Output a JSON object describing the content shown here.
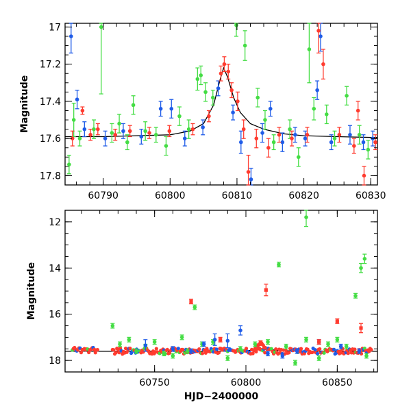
{
  "chart_data": [
    {
      "type": "scatter",
      "title": "",
      "xlabel": "",
      "ylabel": "Magnitude",
      "xlim": [
        60784.3,
        60831
      ],
      "ylim": [
        17.85,
        16.98
      ],
      "y_inverted": true,
      "xticks": [
        60790,
        60800,
        60810,
        60820,
        60830
      ],
      "yticks": [
        17,
        17.2,
        17.4,
        17.6,
        17.8
      ],
      "ytick_labels": [
        "17",
        "17.2",
        "17.4",
        "17.6",
        "17.8"
      ],
      "colors": {
        "blue": "#1f5ce8",
        "green": "#44dd44",
        "red": "#ff3b2f",
        "model": "#000000"
      },
      "model_curve": {
        "x": [
          60784.3,
          60790,
          60795,
          60800,
          60803,
          60805,
          60806.5,
          60807.5,
          60808,
          60808.6,
          60809.5,
          60810.5,
          60812,
          60814,
          60817,
          60820,
          60825,
          60831
        ],
        "y": [
          17.59,
          17.59,
          17.585,
          17.58,
          17.56,
          17.52,
          17.42,
          17.28,
          17.22,
          17.27,
          17.38,
          17.46,
          17.52,
          17.55,
          17.575,
          17.585,
          17.59,
          17.595
        ]
      },
      "series": [
        {
          "color": "green",
          "points": [
            {
              "x": 60784.9,
              "y": 17.74,
              "err": 0.05
            },
            {
              "x": 60785.6,
              "y": 17.5,
              "err": 0.09
            },
            {
              "x": 60786.5,
              "y": 17.6,
              "err": 0.04
            },
            {
              "x": 60788.6,
              "y": 17.55,
              "err": 0.05
            },
            {
              "x": 60789.7,
              "y": 17.0,
              "err": 0.36
            },
            {
              "x": 60791.3,
              "y": 17.57,
              "err": 0.05
            },
            {
              "x": 60792.4,
              "y": 17.52,
              "err": 0.05
            },
            {
              "x": 60793.6,
              "y": 17.62,
              "err": 0.04
            },
            {
              "x": 60794.5,
              "y": 17.42,
              "err": 0.05
            },
            {
              "x": 60796.3,
              "y": 17.56,
              "err": 0.05
            },
            {
              "x": 60797.9,
              "y": 17.58,
              "err": 0.04
            },
            {
              "x": 60799.4,
              "y": 17.64,
              "err": 0.05
            },
            {
              "x": 60801.4,
              "y": 17.48,
              "err": 0.05
            },
            {
              "x": 60802.8,
              "y": 17.55,
              "err": 0.05
            },
            {
              "x": 60804.1,
              "y": 17.28,
              "err": 0.06
            },
            {
              "x": 60804.6,
              "y": 17.26,
              "err": 0.05
            },
            {
              "x": 60805.3,
              "y": 17.35,
              "err": 0.05
            },
            {
              "x": 60806.4,
              "y": 17.38,
              "err": 0.04
            },
            {
              "x": 60809.9,
              "y": 16.99,
              "err": 0.06
            },
            {
              "x": 60811.2,
              "y": 17.1,
              "err": 0.08
            },
            {
              "x": 60813.1,
              "y": 17.38,
              "err": 0.05
            },
            {
              "x": 60814.2,
              "y": 17.5,
              "err": 0.05
            },
            {
              "x": 60815.5,
              "y": 17.62,
              "err": 0.04
            },
            {
              "x": 60817.9,
              "y": 17.55,
              "err": 0.05
            },
            {
              "x": 60819.2,
              "y": 17.7,
              "err": 0.05
            },
            {
              "x": 60820.8,
              "y": 17.12,
              "err": 0.18
            },
            {
              "x": 60821.5,
              "y": 17.44,
              "err": 0.06
            },
            {
              "x": 60823.4,
              "y": 17.47,
              "err": 0.05
            },
            {
              "x": 60824.6,
              "y": 17.6,
              "err": 0.04
            },
            {
              "x": 60826.4,
              "y": 17.37,
              "err": 0.05
            },
            {
              "x": 60828.3,
              "y": 17.58,
              "err": 0.05
            },
            {
              "x": 60829.6,
              "y": 17.66,
              "err": 0.05
            }
          ]
        },
        {
          "color": "blue",
          "points": [
            {
              "x": 60785.2,
              "y": 17.05,
              "err": 0.09
            },
            {
              "x": 60786.1,
              "y": 17.39,
              "err": 0.05
            },
            {
              "x": 60787.2,
              "y": 17.55,
              "err": 0.04
            },
            {
              "x": 60790.3,
              "y": 17.6,
              "err": 0.04
            },
            {
              "x": 60793.0,
              "y": 17.56,
              "err": 0.04
            },
            {
              "x": 60795.7,
              "y": 17.59,
              "err": 0.04
            },
            {
              "x": 60798.6,
              "y": 17.44,
              "err": 0.04
            },
            {
              "x": 60800.2,
              "y": 17.44,
              "err": 0.05
            },
            {
              "x": 60802.2,
              "y": 17.6,
              "err": 0.04
            },
            {
              "x": 60804.9,
              "y": 17.54,
              "err": 0.04
            },
            {
              "x": 60807.2,
              "y": 17.33,
              "err": 0.04
            },
            {
              "x": 60809.4,
              "y": 17.46,
              "err": 0.04
            },
            {
              "x": 60810.6,
              "y": 17.62,
              "err": 0.06
            },
            {
              "x": 60812.1,
              "y": 17.82,
              "err": 0.06
            },
            {
              "x": 60813.8,
              "y": 17.57,
              "err": 0.05
            },
            {
              "x": 60815.0,
              "y": 17.44,
              "err": 0.04
            },
            {
              "x": 60816.8,
              "y": 17.62,
              "err": 0.05
            },
            {
              "x": 60818.7,
              "y": 17.58,
              "err": 0.04
            },
            {
              "x": 60820.2,
              "y": 17.6,
              "err": 0.04
            },
            {
              "x": 60822.0,
              "y": 17.34,
              "err": 0.05
            },
            {
              "x": 60822.5,
              "y": 17.05,
              "err": 0.08
            },
            {
              "x": 60824.1,
              "y": 17.62,
              "err": 0.04
            },
            {
              "x": 60826.9,
              "y": 17.58,
              "err": 0.05
            },
            {
              "x": 60828.9,
              "y": 17.62,
              "err": 0.04
            },
            {
              "x": 60830.3,
              "y": 17.6,
              "err": 0.04
            }
          ]
        },
        {
          "color": "red",
          "points": [
            {
              "x": 60785.4,
              "y": 17.6,
              "err": 0.04
            },
            {
              "x": 60786.9,
              "y": 17.45,
              "err": 0.02
            },
            {
              "x": 60788.1,
              "y": 17.58,
              "err": 0.03
            },
            {
              "x": 60789.2,
              "y": 17.55,
              "err": 0.03
            },
            {
              "x": 60791.8,
              "y": 17.58,
              "err": 0.03
            },
            {
              "x": 60794.0,
              "y": 17.56,
              "err": 0.03
            },
            {
              "x": 60796.9,
              "y": 17.57,
              "err": 0.03
            },
            {
              "x": 60799.9,
              "y": 17.56,
              "err": 0.03
            },
            {
              "x": 60803.4,
              "y": 17.55,
              "err": 0.03
            },
            {
              "x": 60805.8,
              "y": 17.48,
              "err": 0.03
            },
            {
              "x": 60807.6,
              "y": 17.25,
              "err": 0.04
            },
            {
              "x": 60808.1,
              "y": 17.2,
              "err": 0.04
            },
            {
              "x": 60808.7,
              "y": 17.24,
              "err": 0.04
            },
            {
              "x": 60809.2,
              "y": 17.34,
              "err": 0.04
            },
            {
              "x": 60810.1,
              "y": 17.4,
              "err": 0.05
            },
            {
              "x": 60811.0,
              "y": 17.55,
              "err": 0.05
            },
            {
              "x": 60811.7,
              "y": 17.78,
              "err": 0.09
            },
            {
              "x": 60812.9,
              "y": 17.6,
              "err": 0.05
            },
            {
              "x": 60814.7,
              "y": 17.65,
              "err": 0.05
            },
            {
              "x": 60816.3,
              "y": 17.58,
              "err": 0.04
            },
            {
              "x": 60818.2,
              "y": 17.6,
              "err": 0.04
            },
            {
              "x": 60820.5,
              "y": 17.58,
              "err": 0.04
            },
            {
              "x": 60822.2,
              "y": 17.02,
              "err": 0.12
            },
            {
              "x": 60822.9,
              "y": 17.2,
              "err": 0.08
            },
            {
              "x": 60825.3,
              "y": 17.58,
              "err": 0.04
            },
            {
              "x": 60827.5,
              "y": 17.64,
              "err": 0.04
            },
            {
              "x": 60828.1,
              "y": 17.45,
              "err": 0.05
            },
            {
              "x": 60829.0,
              "y": 17.8,
              "err": 0.05
            },
            {
              "x": 60830.7,
              "y": 17.62,
              "err": 0.04
            }
          ]
        }
      ]
    },
    {
      "type": "scatter",
      "title": "",
      "xlabel": "HJD−2400000",
      "ylabel": "Magnitude",
      "xlim": [
        60701,
        60872
      ],
      "ylim": [
        18.5,
        11.5
      ],
      "y_inverted": true,
      "xticks": [
        60750,
        60800,
        60850
      ],
      "yticks": [
        12,
        14,
        16,
        18
      ],
      "ytick_labels": [
        "12",
        "14",
        "16",
        "18"
      ],
      "colors": {
        "blue": "#1f5ce8",
        "green": "#44dd44",
        "red": "#ff3b2f",
        "model": "#000000"
      },
      "model_curve": {
        "x": [
          60701,
          60780,
          60800,
          60803,
          60806,
          60808,
          60810,
          60813,
          60818,
          60840,
          60872
        ],
        "y": [
          17.6,
          17.6,
          17.59,
          17.56,
          17.48,
          17.22,
          17.4,
          17.52,
          17.58,
          17.6,
          17.6
        ]
      },
      "series": [
        {
          "color": "green",
          "points": [
            {
              "x": 60727,
              "y": 16.5
            },
            {
              "x": 60731,
              "y": 17.3
            },
            {
              "x": 60736,
              "y": 17.1
            },
            {
              "x": 60740,
              "y": 17.6
            },
            {
              "x": 60745,
              "y": 17.4
            },
            {
              "x": 60750,
              "y": 17.2
            },
            {
              "x": 60755,
              "y": 17.7
            },
            {
              "x": 60760,
              "y": 17.8
            },
            {
              "x": 60765,
              "y": 17.0
            },
            {
              "x": 60768,
              "y": 17.6
            },
            {
              "x": 60772,
              "y": 15.7
            },
            {
              "x": 60776,
              "y": 17.3
            },
            {
              "x": 60782,
              "y": 17.2
            },
            {
              "x": 60790,
              "y": 17.9
            },
            {
              "x": 60797,
              "y": 17.5
            },
            {
              "x": 60805,
              "y": 17.3
            },
            {
              "x": 60812,
              "y": 17.2
            },
            {
              "x": 60818,
              "y": 13.85
            },
            {
              "x": 60822,
              "y": 17.4
            },
            {
              "x": 60827,
              "y": 18.1
            },
            {
              "x": 60833,
              "y": 11.8,
              "err": 0.4
            },
            {
              "x": 60833,
              "y": 17.1
            },
            {
              "x": 60840,
              "y": 17.9
            },
            {
              "x": 60845,
              "y": 17.3
            },
            {
              "x": 60850,
              "y": 17.1
            },
            {
              "x": 60855,
              "y": 17.4
            },
            {
              "x": 60860,
              "y": 15.2
            },
            {
              "x": 60863,
              "y": 14.0,
              "err": 0.2
            },
            {
              "x": 60865,
              "y": 13.6,
              "err": 0.2
            },
            {
              "x": 60866,
              "y": 17.8
            }
          ]
        },
        {
          "color": "blue",
          "points": [
            {
              "x": 60745,
              "y": 17.35,
              "err": 0.25
            },
            {
              "x": 60760,
              "y": 17.5
            },
            {
              "x": 60770,
              "y": 17.6
            },
            {
              "x": 60777,
              "y": 17.3
            },
            {
              "x": 60783,
              "y": 17.1,
              "err": 0.25
            },
            {
              "x": 60790,
              "y": 17.15,
              "err": 0.3
            },
            {
              "x": 60797,
              "y": 16.7,
              "err": 0.2
            },
            {
              "x": 60812,
              "y": 17.7
            },
            {
              "x": 60820,
              "y": 17.8
            },
            {
              "x": 60828,
              "y": 17.6
            },
            {
              "x": 60840,
              "y": 17.2
            },
            {
              "x": 60852,
              "y": 17.4
            },
            {
              "x": 60862,
              "y": 17.6
            }
          ]
        },
        {
          "color": "red",
          "points": [
            {
              "x": 60770,
              "y": 15.45
            },
            {
              "x": 60786,
              "y": 17.1
            },
            {
              "x": 60811,
              "y": 14.95,
              "err": 0.25
            },
            {
              "x": 60840,
              "y": 17.2
            },
            {
              "x": 60850,
              "y": 16.3
            },
            {
              "x": 60863,
              "y": 16.6,
              "err": 0.2
            },
            {
              "x": 60808,
              "y": 17.25
            }
          ]
        }
      ],
      "dense_band": {
        "segments": [
          {
            "x0": 60705,
            "x1": 60719,
            "y": 17.55
          },
          {
            "x0": 60727,
            "x1": 60869,
            "y": 17.6
          }
        ],
        "bump": {
          "x": 60808,
          "y": 17.25
        }
      }
    }
  ]
}
